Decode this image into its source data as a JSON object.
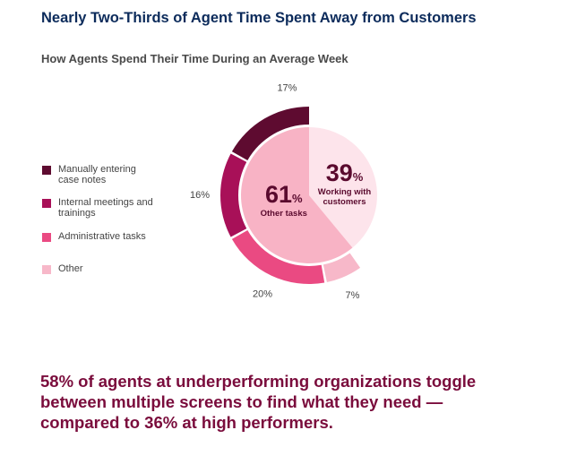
{
  "chart_data": [
    {
      "type": "pie",
      "title": "Nearly Two-Thirds of Agent Time Spent Away from Customers",
      "subtitle": "How Agents Spend Their Time During an Average Week",
      "categories": [
        "Working with customers",
        "Other tasks"
      ],
      "values": [
        39,
        61
      ],
      "unit": "%",
      "colors": [
        "#fde4eb",
        "#f8b3c5"
      ]
    },
    {
      "type": "ring",
      "categories": [
        "Manually entering case notes",
        "Internal meetings and trainings",
        "Administrative tasks",
        "Other"
      ],
      "values": [
        17,
        16,
        20,
        7
      ],
      "value_labels": [
        "17%",
        "16%",
        "20%",
        "7%"
      ],
      "colors": [
        "#5e0b30",
        "#a81058",
        "#ea4a82",
        "#f7b8c9"
      ]
    }
  ],
  "footer": "58% of agents at underperforming organizations toggle between multiple screens to find what they need — compared to 36% at high performers."
}
